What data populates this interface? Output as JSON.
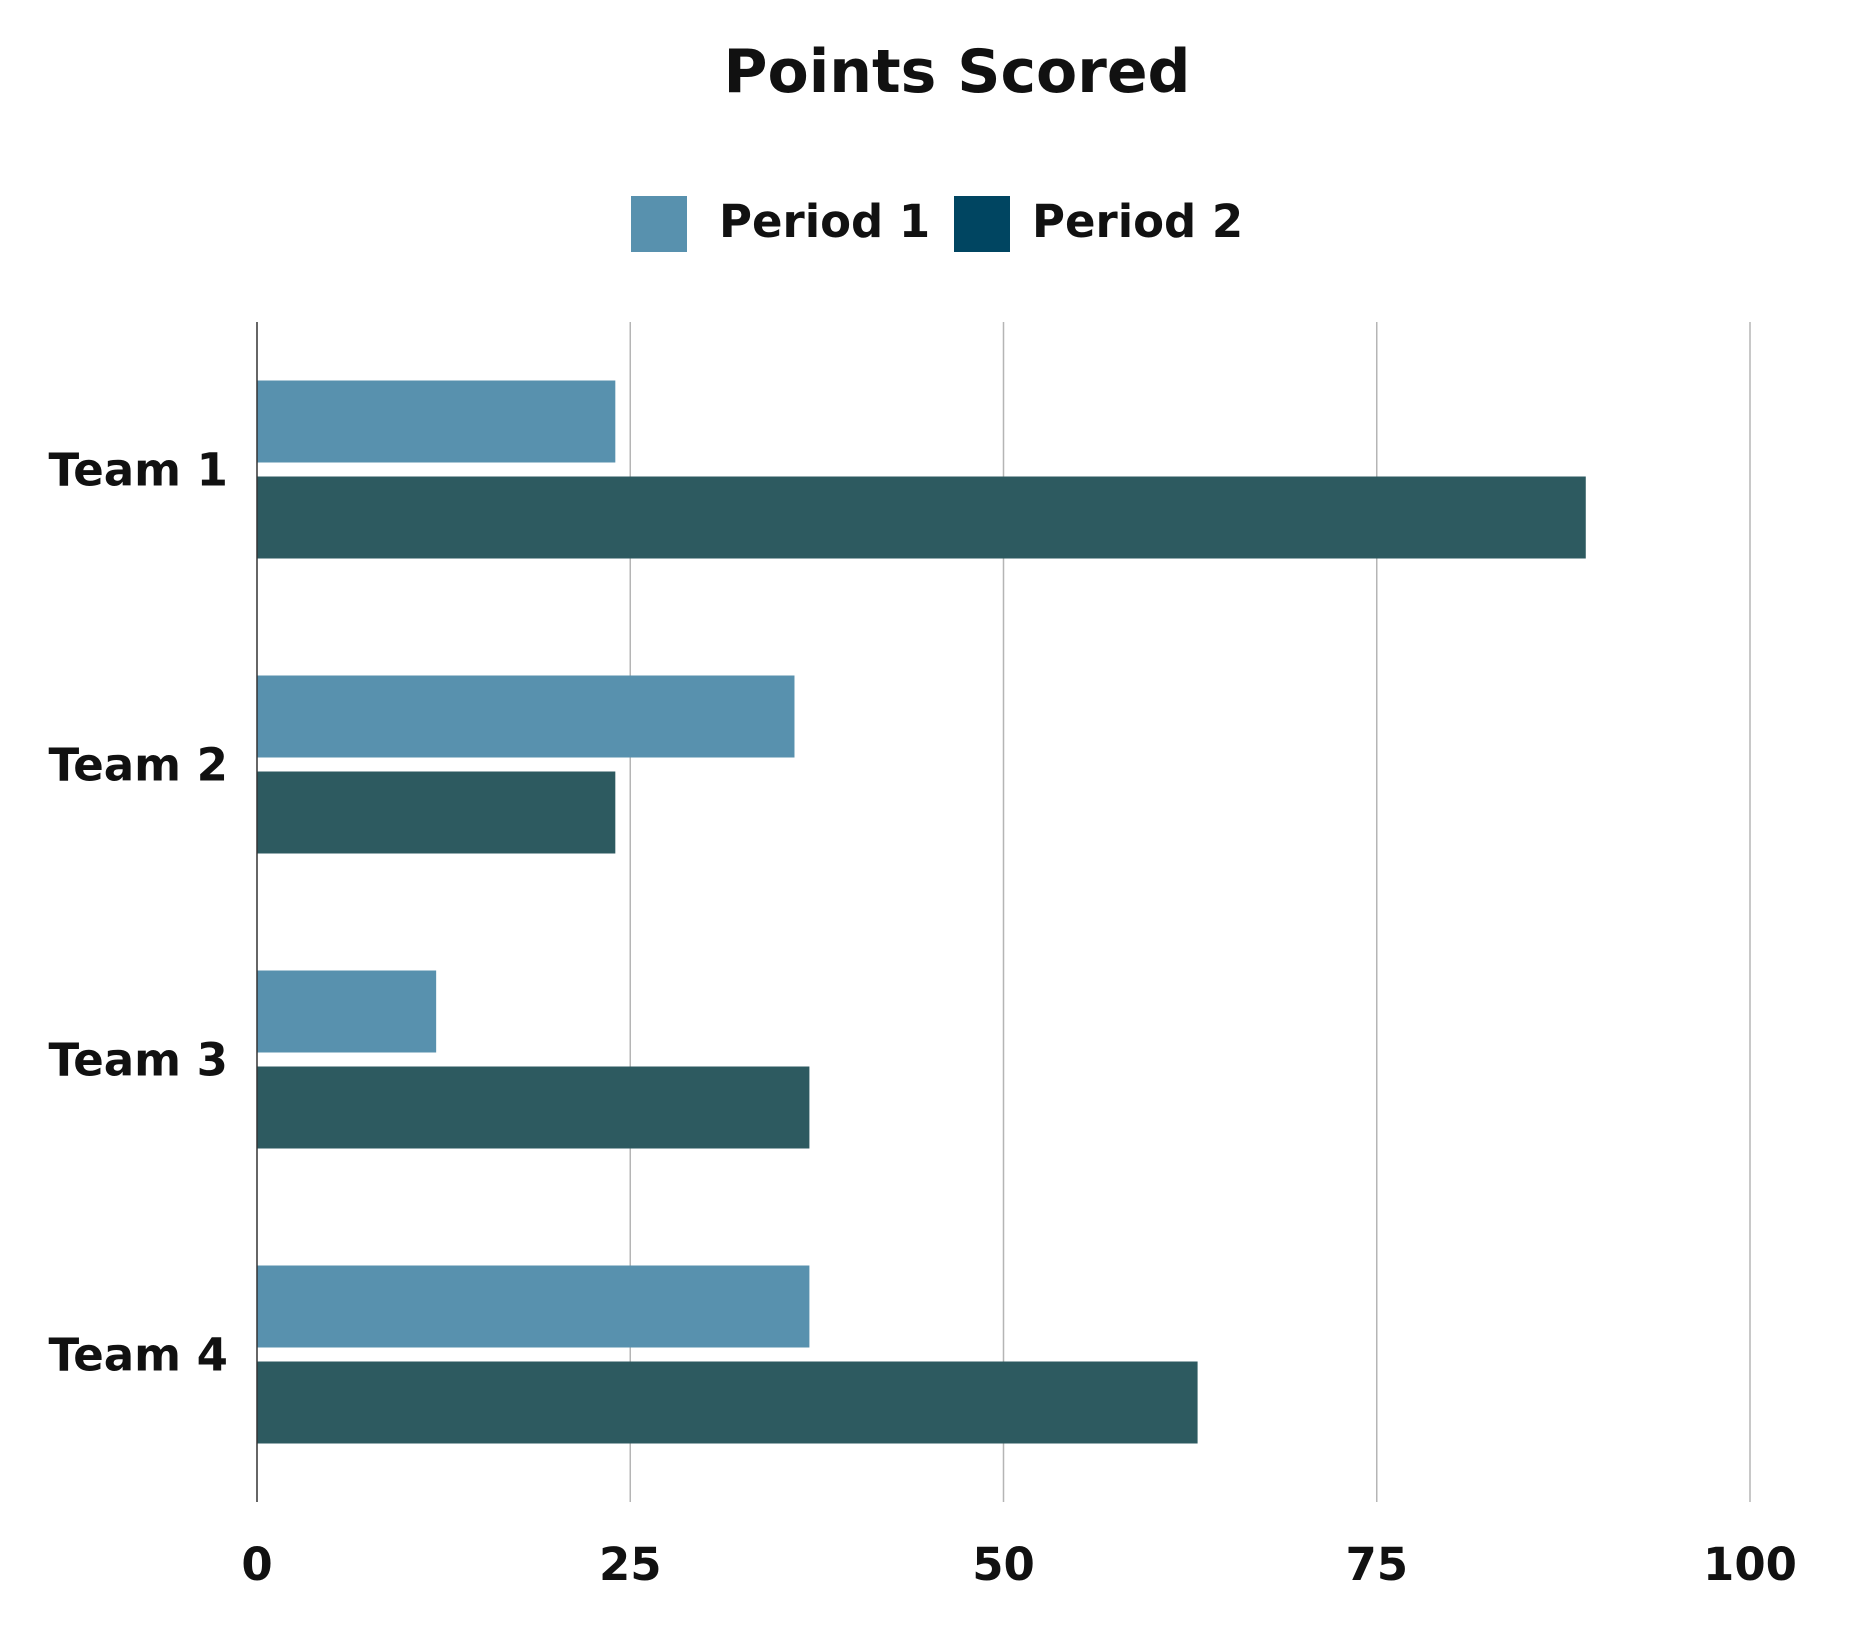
{
  "chart_data": {
    "type": "bar",
    "orientation": "horizontal",
    "title": "Points Scored",
    "xlabel": "",
    "ylabel": "",
    "categories": [
      "Team 1",
      "Team 2",
      "Team 3",
      "Team 4"
    ],
    "series": [
      {
        "name": "Period 1",
        "values": [
          24,
          36,
          12,
          37
        ],
        "color": "#5891ae"
      },
      {
        "name": "Period 2",
        "values": [
          89,
          24,
          37,
          63
        ],
        "color": "#2d5a60"
      }
    ],
    "legend_swatch_colors": [
      "#5891ae",
      "#004561"
    ],
    "xlim": [
      0,
      100
    ],
    "xticks": [
      0,
      25,
      50,
      75,
      100
    ],
    "grid": true,
    "legend_position": "top-center"
  }
}
